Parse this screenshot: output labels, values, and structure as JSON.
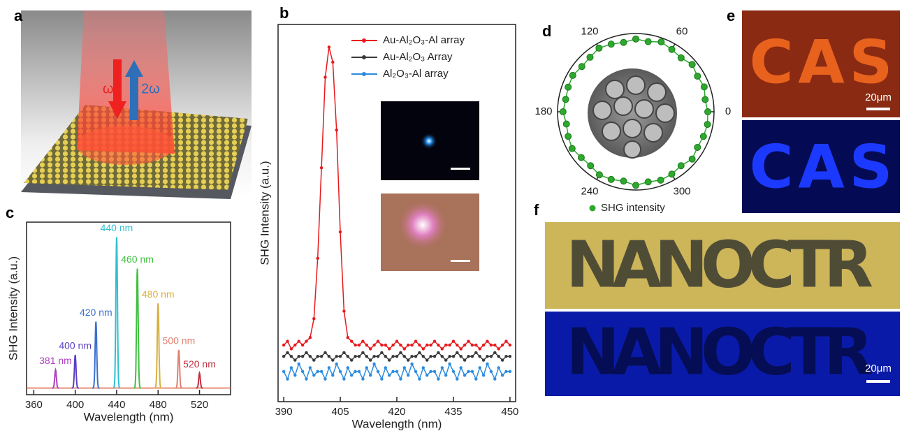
{
  "panel_labels": [
    "a",
    "b",
    "c",
    "d",
    "e",
    "f"
  ],
  "panel_a": {
    "omega": "ω",
    "two_omega": "2ω"
  },
  "chart_data": [
    {
      "type": "line",
      "xlabel": "Wavelength (nm)",
      "ylabel": "SHG Intensity (a.u.)",
      "xlim": [
        388.5,
        451.5
      ],
      "xticks": [
        390,
        405,
        420,
        435,
        450
      ],
      "ylim": [
        0,
        1
      ],
      "x": [
        390,
        391,
        392,
        393,
        394,
        395,
        396,
        397,
        398,
        399,
        400,
        401,
        402,
        403,
        404,
        405,
        406,
        407,
        408,
        409,
        410,
        411,
        412,
        413,
        414,
        415,
        416,
        417,
        418,
        419,
        420,
        421,
        422,
        423,
        424,
        425,
        426,
        427,
        428,
        429,
        430,
        431,
        432,
        433,
        434,
        435,
        436,
        437,
        438,
        439,
        440,
        441,
        442,
        443,
        444,
        445,
        446,
        447,
        448,
        449,
        450
      ],
      "series": [
        {
          "name": "Au-Al₂O₃-Al array",
          "color": "#e8191c",
          "values": [
            0.15,
            0.16,
            0.14,
            0.15,
            0.16,
            0.15,
            0.16,
            0.17,
            0.22,
            0.38,
            0.62,
            0.86,
            0.94,
            0.9,
            0.72,
            0.45,
            0.24,
            0.17,
            0.16,
            0.15,
            0.15,
            0.16,
            0.15,
            0.14,
            0.15,
            0.16,
            0.15,
            0.15,
            0.14,
            0.15,
            0.16,
            0.15,
            0.14,
            0.15,
            0.15,
            0.16,
            0.15,
            0.14,
            0.15,
            0.15,
            0.16,
            0.15,
            0.14,
            0.15,
            0.15,
            0.16,
            0.15,
            0.14,
            0.15,
            0.16,
            0.15,
            0.15,
            0.14,
            0.15,
            0.16,
            0.15,
            0.15,
            0.14,
            0.15,
            0.16,
            0.15
          ]
        },
        {
          "name": "Au-Al₂O₃ Array",
          "color": "#3a3a3a",
          "values": [
            0.12,
            0.13,
            0.12,
            0.11,
            0.12,
            0.12,
            0.13,
            0.12,
            0.11,
            0.12,
            0.12,
            0.13,
            0.12,
            0.11,
            0.12,
            0.12,
            0.13,
            0.12,
            0.11,
            0.12,
            0.12,
            0.13,
            0.12,
            0.11,
            0.12,
            0.12,
            0.13,
            0.12,
            0.11,
            0.12,
            0.12,
            0.13,
            0.12,
            0.11,
            0.12,
            0.12,
            0.13,
            0.12,
            0.11,
            0.12,
            0.12,
            0.13,
            0.12,
            0.11,
            0.12,
            0.12,
            0.13,
            0.12,
            0.11,
            0.12,
            0.12,
            0.13,
            0.12,
            0.11,
            0.12,
            0.12,
            0.13,
            0.12,
            0.11,
            0.12,
            0.12
          ]
        },
        {
          "name": "Al₂O₃-Al array",
          "color": "#2b8be0",
          "values": [
            0.08,
            0.06,
            0.09,
            0.07,
            0.1,
            0.08,
            0.06,
            0.09,
            0.07,
            0.08,
            0.08,
            0.06,
            0.09,
            0.07,
            0.1,
            0.08,
            0.06,
            0.09,
            0.07,
            0.08,
            0.08,
            0.06,
            0.09,
            0.07,
            0.1,
            0.08,
            0.06,
            0.09,
            0.07,
            0.08,
            0.08,
            0.06,
            0.09,
            0.07,
            0.1,
            0.08,
            0.06,
            0.09,
            0.07,
            0.08,
            0.08,
            0.06,
            0.09,
            0.07,
            0.1,
            0.08,
            0.06,
            0.09,
            0.07,
            0.08,
            0.08,
            0.06,
            0.09,
            0.07,
            0.1,
            0.08,
            0.06,
            0.09,
            0.07,
            0.08,
            0.08
          ]
        }
      ]
    },
    {
      "type": "peak",
      "xlabel": "Wavelength (nm)",
      "ylabel": "SHG Intensity (a.u.)",
      "xlim": [
        353,
        550
      ],
      "xticks": [
        360,
        400,
        440,
        480,
        520
      ],
      "ylim": [
        -0.04,
        1
      ],
      "series": [
        {
          "name": "381 nm",
          "color": "#b040c0",
          "x": [
            381
          ],
          "values": [
            0.11
          ]
        },
        {
          "name": "400 nm",
          "color": "#5a3fc0",
          "x": [
            400
          ],
          "values": [
            0.2
          ]
        },
        {
          "name": "420 nm",
          "color": "#3a70d0",
          "x": [
            420
          ],
          "values": [
            0.4
          ]
        },
        {
          "name": "440 nm",
          "color": "#30c0d0",
          "x": [
            440
          ],
          "values": [
            0.91
          ]
        },
        {
          "name": "460 nm",
          "color": "#40c040",
          "x": [
            460
          ],
          "values": [
            0.72
          ]
        },
        {
          "name": "480 nm",
          "color": "#d8b040",
          "x": [
            480
          ],
          "values": [
            0.51
          ]
        },
        {
          "name": "500 nm",
          "color": "#e08070",
          "x": [
            500
          ],
          "values": [
            0.23
          ]
        },
        {
          "name": "520 nm",
          "color": "#c03040",
          "x": [
            520
          ],
          "values": [
            0.09
          ]
        }
      ]
    },
    {
      "type": "polar",
      "rlim": [
        0,
        1
      ],
      "thetaticks": [
        0,
        60,
        120,
        180,
        240,
        300
      ],
      "theta": [
        0,
        10,
        20,
        30,
        40,
        50,
        60,
        70,
        80,
        90,
        100,
        110,
        120,
        130,
        140,
        150,
        160,
        170,
        180,
        190,
        200,
        210,
        220,
        230,
        240,
        250,
        260,
        270,
        280,
        290,
        300,
        310,
        320,
        330,
        340,
        350
      ],
      "series": [
        {
          "name": "SHG intensity",
          "color": "#2ea82e",
          "values": [
            0.92,
            0.9,
            0.93,
            0.91,
            0.94,
            0.9,
            0.92,
            0.95,
            0.91,
            0.93,
            0.9,
            0.92,
            0.94,
            0.91,
            0.9,
            0.93,
            0.92,
            0.91,
            0.93,
            0.9,
            0.92,
            0.94,
            0.91,
            0.9,
            0.93,
            0.92,
            0.9,
            0.94,
            0.91,
            0.93,
            0.92,
            0.9,
            0.94,
            0.91,
            0.92,
            0.93
          ]
        }
      ]
    }
  ],
  "panel_e": {
    "text": "CAS",
    "scale_bar": "20μm"
  },
  "panel_f": {
    "text": "NANOCTR",
    "scale_bar": "20μm"
  }
}
